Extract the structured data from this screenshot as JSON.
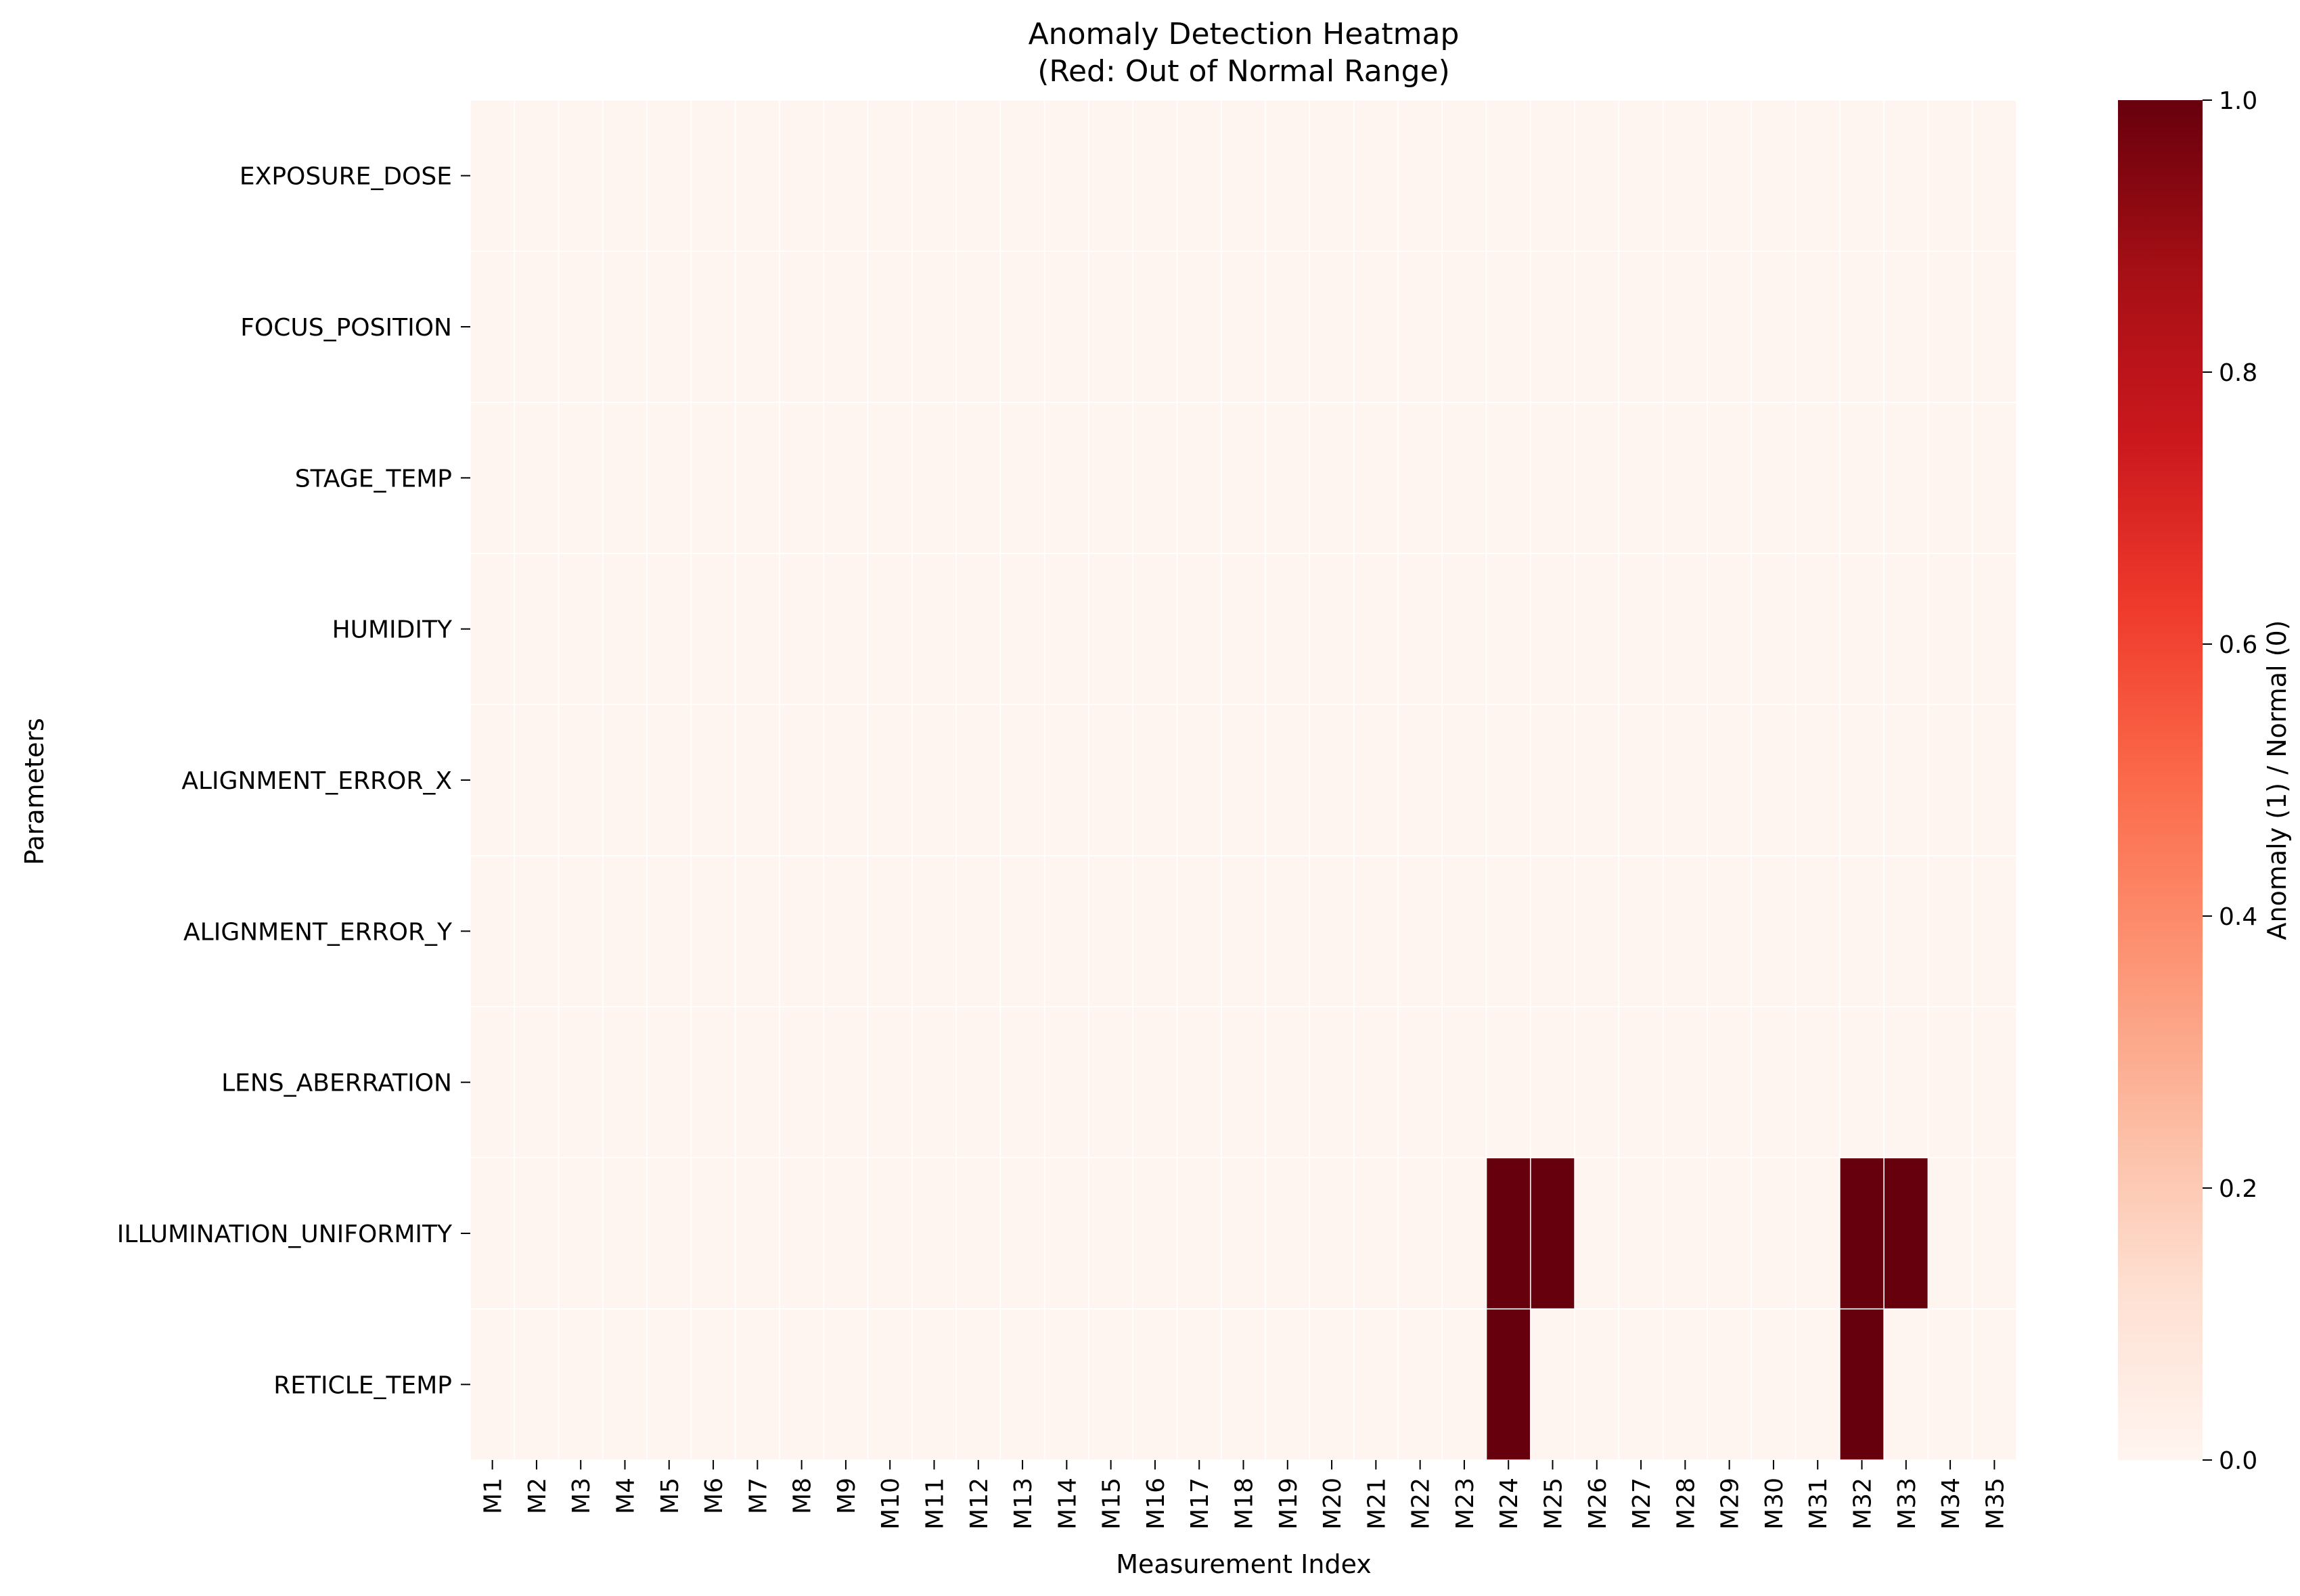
{
  "chart_data": {
    "type": "heatmap",
    "title": "Anomaly Detection Heatmap",
    "subtitle": "(Red: Out of Normal Range)",
    "xlabel": "Measurement Index",
    "ylabel": "Parameters",
    "colorbar_label": "Anomaly (1) / Normal (0)",
    "colormap": "Reds",
    "color_low": "#fff5f0",
    "color_high": "#67000d",
    "vmin": 0.0,
    "vmax": 1.0,
    "colorbar_ticks": [
      "0.0",
      "0.2",
      "0.4",
      "0.6",
      "0.8",
      "1.0"
    ],
    "x_categories": [
      "M1",
      "M2",
      "M3",
      "M4",
      "M5",
      "M6",
      "M7",
      "M8",
      "M9",
      "M10",
      "M11",
      "M12",
      "M13",
      "M14",
      "M15",
      "M16",
      "M17",
      "M18",
      "M19",
      "M20",
      "M21",
      "M22",
      "M23",
      "M24",
      "M25",
      "M26",
      "M27",
      "M28",
      "M29",
      "M30",
      "M31",
      "M32",
      "M33",
      "M34",
      "M35"
    ],
    "y_categories": [
      "EXPOSURE_DOSE",
      "FOCUS_POSITION",
      "STAGE_TEMP",
      "HUMIDITY",
      "ALIGNMENT_ERROR_X",
      "ALIGNMENT_ERROR_Y",
      "LENS_ABERRATION",
      "ILLUMINATION_UNIFORMITY",
      "RETICLE_TEMP"
    ],
    "anomalies": [
      {
        "parameter": "ILLUMINATION_UNIFORMITY",
        "measurement": "M24",
        "value": 1
      },
      {
        "parameter": "ILLUMINATION_UNIFORMITY",
        "measurement": "M25",
        "value": 1
      },
      {
        "parameter": "ILLUMINATION_UNIFORMITY",
        "measurement": "M32",
        "value": 1
      },
      {
        "parameter": "ILLUMINATION_UNIFORMITY",
        "measurement": "M33",
        "value": 1
      },
      {
        "parameter": "RETICLE_TEMP",
        "measurement": "M24",
        "value": 1
      },
      {
        "parameter": "RETICLE_TEMP",
        "measurement": "M32",
        "value": 1
      }
    ],
    "default_value": 0
  }
}
